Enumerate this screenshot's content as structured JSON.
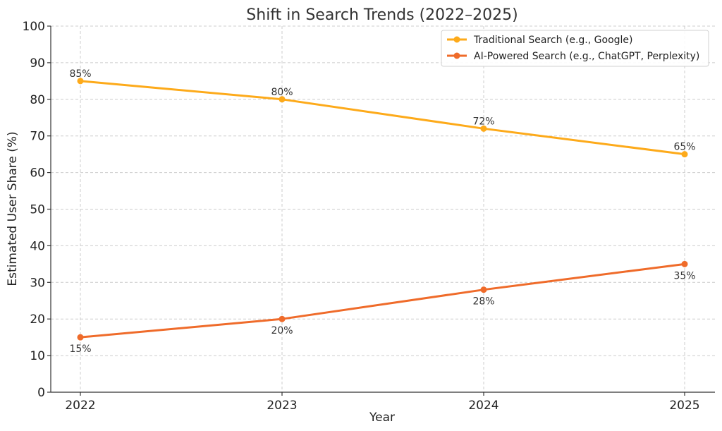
{
  "chart_data": {
    "type": "line",
    "title": "Shift in Search Trends (2022–2025)",
    "xlabel": "Year",
    "ylabel": "Estimated User Share (%)",
    "categories": [
      "2022",
      "2023",
      "2024",
      "2025"
    ],
    "ylim": [
      0,
      100
    ],
    "yticks": [
      0,
      10,
      20,
      30,
      40,
      50,
      60,
      70,
      80,
      90,
      100
    ],
    "grid": true,
    "legend_position": "top-right",
    "series": [
      {
        "name": "Traditional Search (e.g., Google)",
        "color": "#FDAA1A",
        "values": [
          85,
          80,
          72,
          65
        ],
        "labels": [
          "85%",
          "80%",
          "72%",
          "65%"
        ],
        "label_position": "above"
      },
      {
        "name": "AI-Powered Search (e.g., ChatGPT, Perplexity)",
        "color": "#EF6B2A",
        "values": [
          15,
          20,
          28,
          35
        ],
        "labels": [
          "15%",
          "20%",
          "28%",
          "35%"
        ],
        "label_position": "below"
      }
    ]
  }
}
